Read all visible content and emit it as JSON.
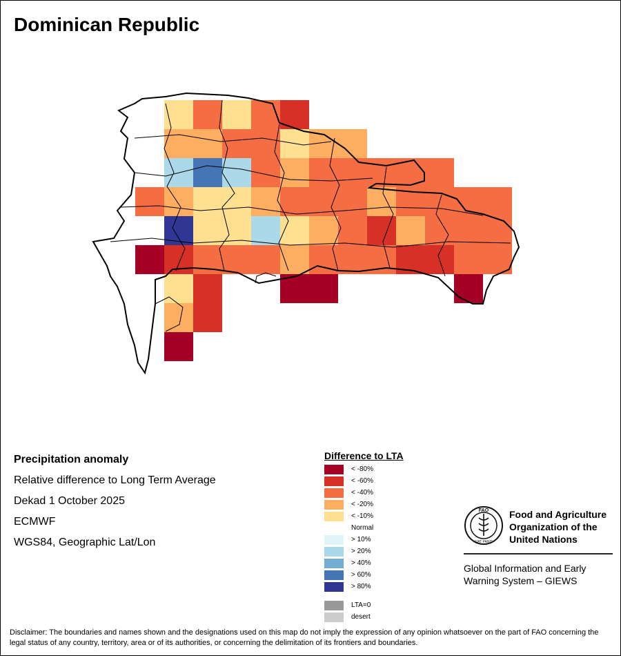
{
  "title": "Dominican Republic",
  "info": {
    "heading": "Precipitation anomaly",
    "subtitle": "Relative difference to Long Term Average",
    "period": "Dekad 1 October 2025",
    "model": "ECMWF",
    "projection": "WGS84, Geographic Lat/Lon"
  },
  "legend": {
    "title": "Difference to LTA",
    "items": [
      {
        "label": "< -80%",
        "color": "#a50026"
      },
      {
        "label": "< -60%",
        "color": "#d73027"
      },
      {
        "label": "< -40%",
        "color": "#f46d43"
      },
      {
        "label": "< -20%",
        "color": "#fdae61"
      },
      {
        "label": "< -10%",
        "color": "#fee090"
      },
      {
        "label": "Normal",
        "color": "#ffffff"
      },
      {
        "label": "> 10%",
        "color": "#e0f3f8"
      },
      {
        "label": "> 20%",
        "color": "#abd9e9"
      },
      {
        "label": "> 40%",
        "color": "#74add1"
      },
      {
        "label": "> 60%",
        "color": "#4575b4"
      },
      {
        "label": "> 80%",
        "color": "#313695"
      }
    ],
    "extra": [
      {
        "label": "LTA=0",
        "color": "#999999"
      },
      {
        "label": "desert",
        "color": "#cccccc"
      }
    ]
  },
  "fao": {
    "name": "Food and Agriculture Organization of the United Nations",
    "giews": "Global Information and Early Warning System – GIEWS",
    "logo_text": "FAO",
    "logo_motto": "FIAT PANIS"
  },
  "disclaimer": "Disclaimer: The boundaries and names shown and the designations used on this map do not imply the expression of any opinion whatsoever on the part of FAO concerning the legal status of any country, territory, area or of its authorities, or concerning the delimitation of its frontiers and boundaries.",
  "map_grid": {
    "colors": {
      "r": "#a50026",
      "d": "#d73027",
      "o": "#f46d43",
      "a": "#fdae61",
      "y": "#fee090",
      "l": "#abd9e9",
      "m": "#74add1",
      "b": "#4575b4",
      "n": "#313695"
    },
    "rows": [
      "..yoyod.......",
      "..aaooyaa.....",
      "..lbloaooooo..",
      ".oayyaoooaoooo",
      "..nyylyaodaooo",
      ".rdoooaoooddoo",
      "..yd..rr....r.",
      "..ad..........",
      "..r..........."
    ]
  }
}
